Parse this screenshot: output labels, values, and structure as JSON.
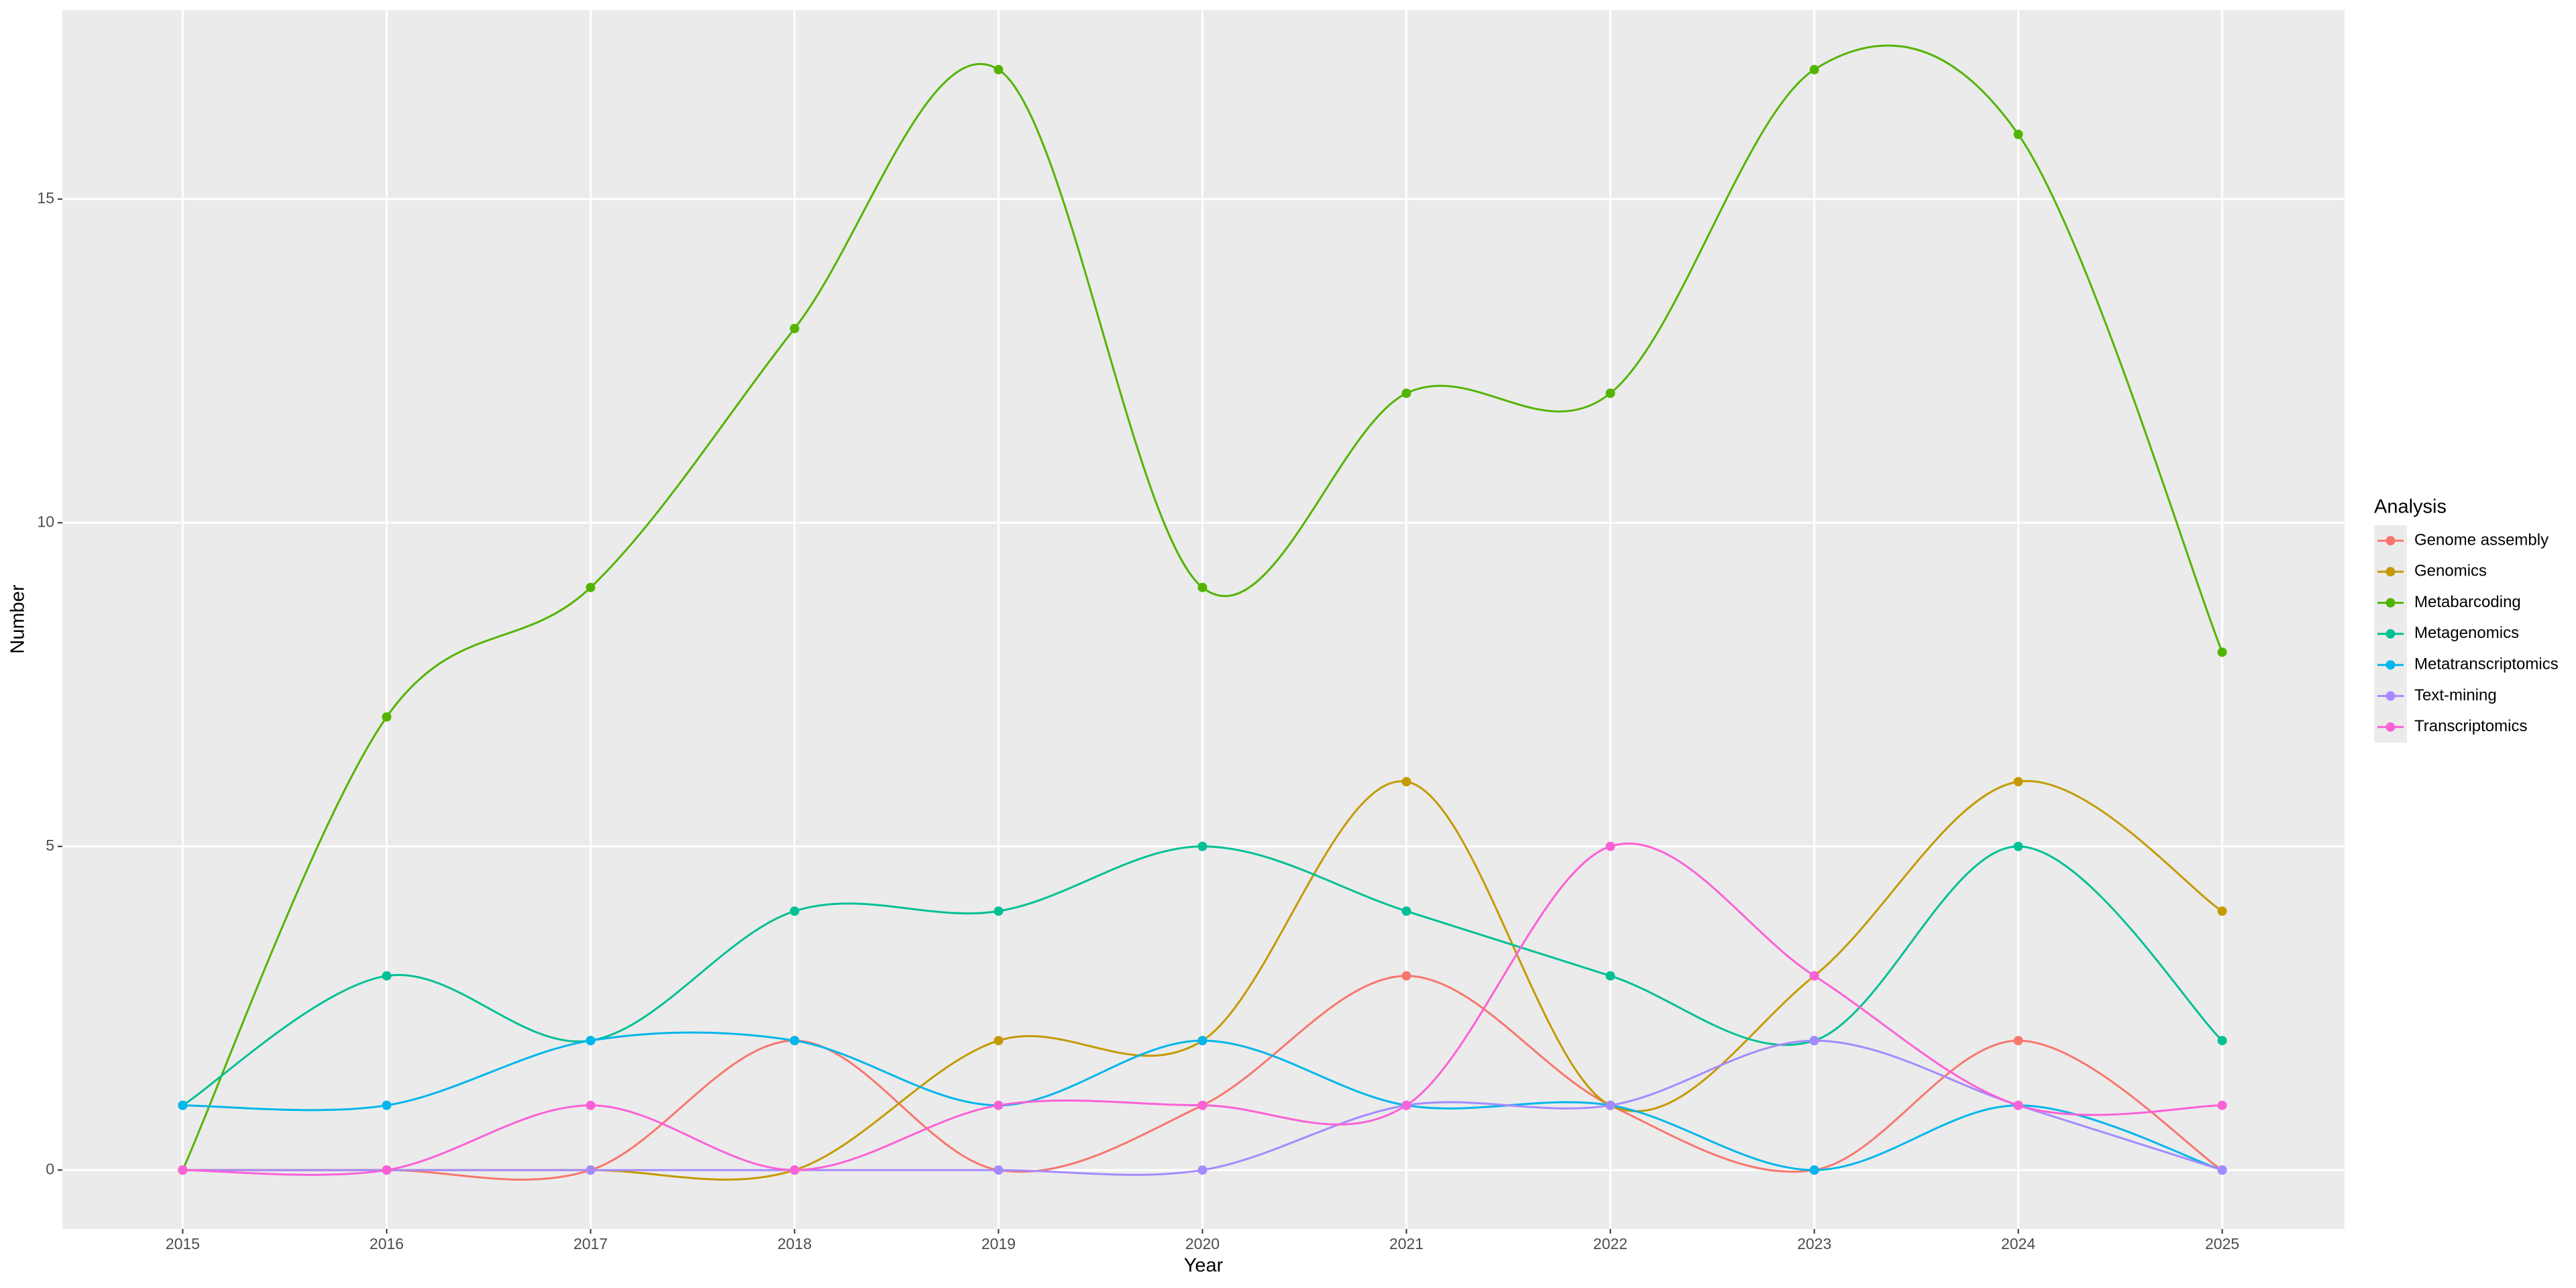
{
  "chart_data": {
    "type": "line",
    "x_label": "Year",
    "y_label": "Number",
    "x": [
      2015,
      2016,
      2017,
      2018,
      2019,
      2020,
      2021,
      2022,
      2023,
      2024,
      2025
    ],
    "series": [
      {
        "name": "Genome assembly",
        "color": "#F8766D",
        "values": [
          0,
          0,
          0,
          2,
          0,
          1,
          3,
          1,
          0,
          2,
          0
        ]
      },
      {
        "name": "Genomics",
        "color": "#C49A00",
        "values": [
          0,
          0,
          0,
          0,
          2,
          2,
          6,
          1,
          3,
          6,
          4
        ]
      },
      {
        "name": "Metabarcoding",
        "color": "#53B400",
        "values": [
          0,
          7,
          9,
          13,
          17,
          9,
          12,
          12,
          17,
          16,
          8
        ]
      },
      {
        "name": "Metagenomics",
        "color": "#00C094",
        "values": [
          1,
          3,
          2,
          4,
          4,
          5,
          4,
          3,
          2,
          5,
          2
        ]
      },
      {
        "name": "Metatranscriptomics",
        "color": "#00B6EB",
        "values": [
          1,
          1,
          2,
          2,
          1,
          2,
          1,
          1,
          0,
          1,
          0
        ]
      },
      {
        "name": "Text-mining",
        "color": "#A58AFF",
        "values": [
          0,
          0,
          0,
          0,
          0,
          0,
          1,
          1,
          2,
          1,
          0
        ]
      },
      {
        "name": "Transcriptomics",
        "color": "#FB61D7",
        "values": [
          0,
          0,
          1,
          0,
          1,
          1,
          1,
          5,
          3,
          1,
          1
        ]
      }
    ],
    "xlim": [
      2014.41,
      2025.6
    ],
    "xticks": [
      2015,
      2016,
      2017,
      2018,
      2019,
      2020,
      2021,
      2022,
      2023,
      2024,
      2025
    ],
    "ylim": [
      -0.91,
      17.92
    ],
    "yticks": [
      0,
      5,
      10,
      15
    ],
    "grid": true,
    "smooth": true,
    "legend": "right",
    "legend_title": "Analysis"
  }
}
